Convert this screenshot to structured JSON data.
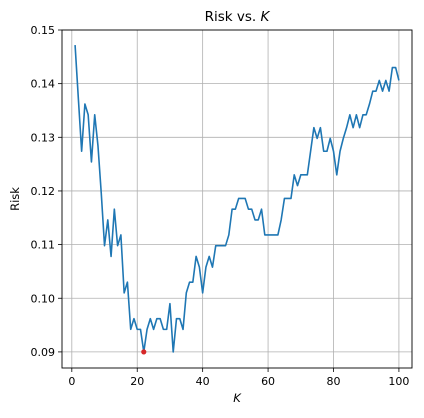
{
  "chart_data": {
    "type": "line",
    "title": {
      "prefix": "Risk vs. ",
      "var": "K"
    },
    "xlabel": "K",
    "ylabel": "Risk",
    "xlim": [
      -3,
      104
    ],
    "ylim": [
      0.087,
      0.15
    ],
    "xticks": [
      0,
      20,
      40,
      60,
      80,
      100
    ],
    "xtick_labels": [
      "0",
      "20",
      "40",
      "60",
      "80",
      "100"
    ],
    "yticks": [
      0.09,
      0.1,
      0.11,
      0.12,
      0.13,
      0.14,
      0.15
    ],
    "ytick_labels": [
      "0.09",
      "0.10",
      "0.11",
      "0.12",
      "0.13",
      "0.14",
      "0.15"
    ],
    "grid": true,
    "line_color": "#1f77b4",
    "marker_color": "#d62728",
    "series": [
      {
        "x": [
          1,
          2,
          3,
          4,
          5,
          6,
          7,
          8,
          9,
          10,
          11,
          12,
          13,
          14,
          15,
          16,
          17,
          18,
          19,
          20,
          21,
          22,
          23,
          24,
          25,
          26,
          27,
          28,
          29,
          30,
          31,
          32,
          33,
          34,
          35,
          36,
          37,
          38,
          39,
          40,
          41,
          42,
          43,
          44,
          45,
          46,
          47,
          48,
          49,
          50,
          51,
          52,
          53,
          54,
          55,
          56,
          57,
          58,
          59,
          60,
          61,
          62,
          63,
          64,
          65,
          66,
          67,
          68,
          69,
          70,
          71,
          72,
          73,
          74,
          75,
          76,
          77,
          78,
          79,
          80,
          81,
          82,
          83,
          84,
          85,
          86,
          87,
          88,
          89,
          90,
          91,
          92,
          93,
          94,
          95,
          96,
          97,
          98,
          99,
          100
        ],
        "values": [
          0.1472,
          0.1372,
          0.1274,
          0.1362,
          0.1342,
          0.1254,
          0.1342,
          0.1284,
          0.1196,
          0.1098,
          0.1146,
          0.1078,
          0.1166,
          0.1098,
          0.1118,
          0.101,
          0.103,
          0.0942,
          0.0962,
          0.0942,
          0.0942,
          0.09,
          0.0942,
          0.0962,
          0.0942,
          0.0962,
          0.0962,
          0.0942,
          0.0942,
          0.099,
          0.09,
          0.0962,
          0.0962,
          0.0942,
          0.101,
          0.103,
          0.103,
          0.1078,
          0.1058,
          0.101,
          0.1058,
          0.1078,
          0.1058,
          0.1098,
          0.1098,
          0.1098,
          0.1098,
          0.1118,
          0.1166,
          0.1166,
          0.1186,
          0.1186,
          0.1186,
          0.1166,
          0.1166,
          0.1146,
          0.1146,
          0.1166,
          0.1118,
          0.1118,
          0.1118,
          0.1118,
          0.1118,
          0.1146,
          0.1186,
          0.1186,
          0.1186,
          0.123,
          0.121,
          0.123,
          0.123,
          0.123,
          0.1274,
          0.1318,
          0.1298,
          0.1318,
          0.1274,
          0.1274,
          0.1298,
          0.1274,
          0.123,
          0.1274,
          0.1298,
          0.1318,
          0.1342,
          0.1318,
          0.1342,
          0.1318,
          0.1342,
          0.1342,
          0.1362,
          0.1386,
          0.1386,
          0.1406,
          0.1386,
          0.1406,
          0.1386,
          0.143,
          0.143,
          0.1406
        ]
      }
    ],
    "min_point": {
      "x": 22,
      "y": 0.09
    }
  }
}
